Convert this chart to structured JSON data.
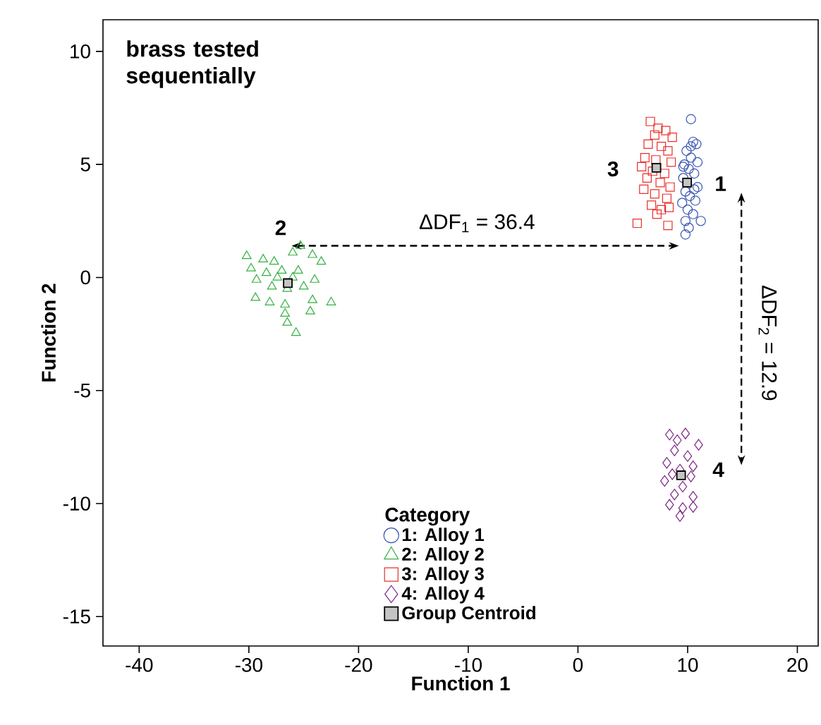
{
  "chart_data": {
    "type": "scatter",
    "xlabel": "Function 1",
    "ylabel": "Function 2",
    "legend_title": "Category",
    "legend": "bottom",
    "xlim": [
      -43.3,
      21.9
    ],
    "ylim": [
      -16.3,
      11.4
    ],
    "xticks": [
      -40,
      -30,
      -20,
      -10,
      0,
      10,
      20
    ],
    "yticks": [
      -15,
      -10,
      -5,
      0,
      5,
      10
    ],
    "grid": false,
    "series": [
      {
        "name": "1: Alloy 1",
        "color": "#3a56b0",
        "marker": "circle",
        "x": [
          10.3,
          10.5,
          10.8,
          9.9,
          10.3,
          10.9,
          9.7,
          10.1,
          10.6,
          9.6,
          10.4,
          10.9,
          9.8,
          10.2,
          10.7,
          9.5,
          10.0,
          10.5,
          11.2,
          9.8,
          10.1,
          9.8,
          10.3,
          9.6,
          10.6
        ],
        "values": [
          7.0,
          6.0,
          5.9,
          5.6,
          5.3,
          5.1,
          5.0,
          4.8,
          4.6,
          4.4,
          null,
          4.0,
          3.8,
          3.6,
          3.4,
          3.3,
          3.0,
          2.8,
          2.5,
          2.5,
          2.2,
          1.9,
          5.8,
          4.9,
          3.9
        ]
      },
      {
        "name": "2: Alloy 2",
        "color": "#33b040",
        "marker": "triangle",
        "x": [
          -30.2,
          -28.7,
          -27.7,
          -26.0,
          -25.3,
          -24.2,
          -23.4,
          -29.8,
          -28.4,
          -27.0,
          -25.5,
          -24.0,
          -29.3,
          -27.9,
          -26.5,
          -25.0,
          -29.4,
          -28.1,
          -26.7,
          -24.2,
          -22.5,
          -26.7,
          -24.4,
          -26.5,
          -25.7,
          -27.4,
          -26.0
        ],
        "values": [
          0.95,
          0.8,
          0.7,
          1.1,
          1.4,
          1.0,
          0.7,
          0.4,
          0.2,
          0.3,
          0.3,
          -0.1,
          -0.1,
          -0.4,
          -0.5,
          -0.4,
          -0.9,
          -1.1,
          -1.2,
          -1.0,
          -1.1,
          -1.6,
          -1.5,
          -2.0,
          -2.45,
          0.0,
          0.0
        ]
      },
      {
        "name": "3: Alloy 3",
        "color": "#e8302c",
        "marker": "square",
        "x": [
          6.6,
          7.3,
          8.0,
          7.0,
          8.6,
          6.4,
          7.6,
          8.2,
          6.1,
          7.1,
          8.5,
          5.8,
          6.8,
          7.9,
          6.3,
          7.5,
          8.4,
          6.0,
          7.0,
          8.1,
          6.7,
          7.6,
          8.3,
          5.4,
          8.2,
          7.2
        ],
        "values": [
          6.9,
          6.6,
          6.5,
          6.3,
          6.2,
          5.9,
          5.8,
          5.6,
          5.3,
          5.2,
          5.1,
          4.9,
          4.7,
          4.6,
          4.4,
          4.2,
          4.0,
          3.9,
          3.7,
          3.5,
          3.2,
          3.0,
          3.1,
          2.4,
          2.3,
          2.8
        ]
      },
      {
        "name": "4: Alloy 4",
        "color": "#7b2384",
        "marker": "diamond",
        "x": [
          8.35,
          9.8,
          11.0,
          8.8,
          10.0,
          8.1,
          10.5,
          8.6,
          10.3,
          7.9,
          9.55,
          8.8,
          10.5,
          8.35,
          9.55,
          10.5,
          9.3,
          9.05,
          9.3
        ],
        "values": [
          -6.95,
          -6.9,
          -7.4,
          -7.65,
          -7.9,
          -8.2,
          -8.35,
          -8.7,
          -8.8,
          -9.0,
          -9.25,
          -9.6,
          -9.7,
          -10.05,
          -10.2,
          -10.15,
          -10.55,
          -7.2,
          -8.5
        ]
      },
      {
        "name": "Group Centroid",
        "color": "#c4c4c4",
        "marker": "square",
        "x": [
          9.95,
          -26.45,
          7.15,
          9.4
        ],
        "values": [
          4.2,
          -0.25,
          4.85,
          -8.75
        ]
      }
    ],
    "annotations": [
      "brass tested sequentially",
      "1",
      "2",
      "3",
      "4",
      "ΔDF$_{1}$ = 36.4",
      "ΔDF$_{2}$ = 12.9"
    ]
  }
}
